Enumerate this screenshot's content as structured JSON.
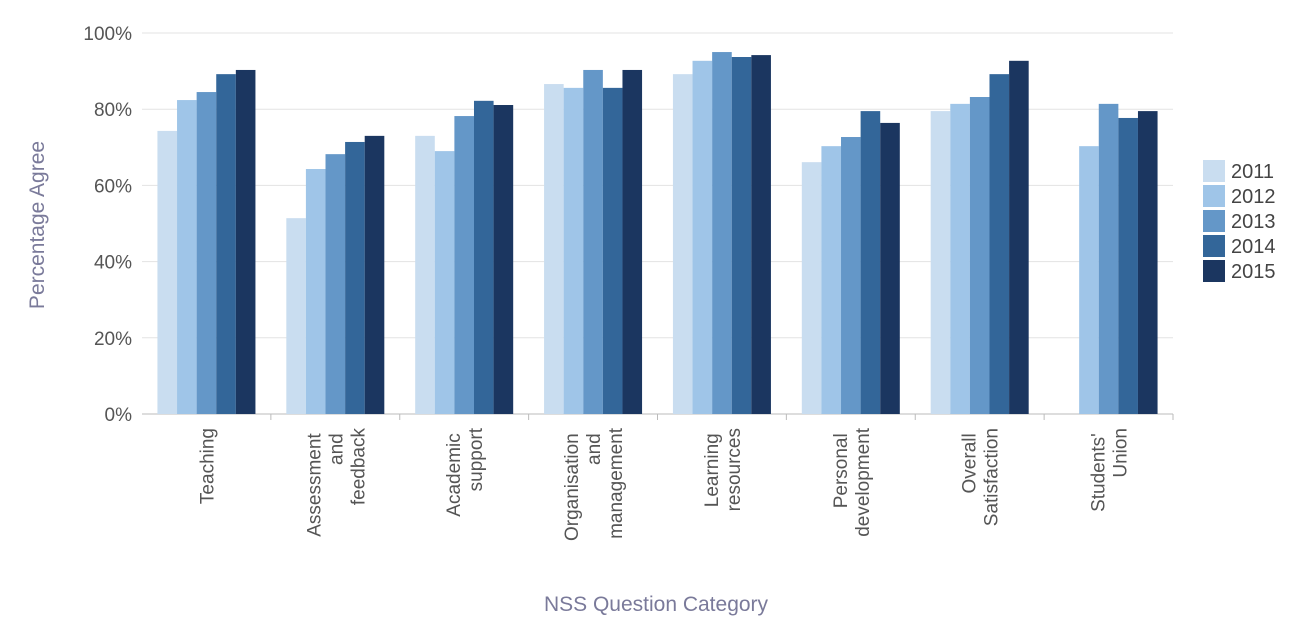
{
  "chart_data": {
    "type": "bar",
    "xlabel": "NSS Question Category",
    "ylabel": "Percentage Agree",
    "categories": [
      "Teaching",
      "Assessment and feedback",
      "Academic support",
      "Organisation and management",
      "Learning resources",
      "Personal development",
      "Overall Satisfaction",
      "Students' Union"
    ],
    "series": [
      {
        "name": "2011",
        "color": "#c9ddf0",
        "values": [
          74.3,
          51.4,
          73,
          86.6,
          89.2,
          66.1,
          79.5,
          null
        ]
      },
      {
        "name": "2012",
        "color": "#9fc5e8",
        "values": [
          82.4,
          64.3,
          69,
          85.6,
          92.7,
          70.3,
          81.4,
          70.3
        ]
      },
      {
        "name": "2013",
        "color": "#6497c8",
        "values": [
          84.5,
          68.2,
          78.2,
          90.3,
          95,
          72.7,
          83.2,
          81.4
        ]
      },
      {
        "name": "2014",
        "color": "#336699",
        "values": [
          89.2,
          71.4,
          82.2,
          85.6,
          93.7,
          79.5,
          89.2,
          77.7
        ]
      },
      {
        "name": "2015",
        "color": "#1b3660",
        "values": [
          90.3,
          73,
          81.1,
          90.3,
          94.2,
          76.4,
          92.7,
          79.5
        ]
      }
    ],
    "ylim": [
      0,
      100
    ],
    "yticks": [
      {
        "value": 0,
        "label": "0%"
      },
      {
        "value": 20,
        "label": "20%"
      },
      {
        "value": 40,
        "label": "40%"
      },
      {
        "value": 60,
        "label": "60%"
      },
      {
        "value": 80,
        "label": "80%"
      },
      {
        "value": 100,
        "label": "100%"
      }
    ],
    "grid": true,
    "legend": "right"
  }
}
